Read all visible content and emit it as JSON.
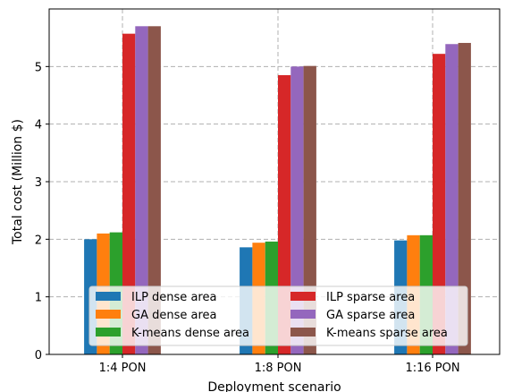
{
  "chart_data": {
    "type": "bar",
    "title": "",
    "xlabel": "Deployment scenario",
    "ylabel": "Total cost (Million $)",
    "categories": [
      "1:4 PON",
      "1:8 PON",
      "1:16 PON"
    ],
    "ylim": [
      0,
      6
    ],
    "yticks": [
      "0",
      "1",
      "2",
      "3",
      "4",
      "5"
    ],
    "grid": true,
    "legend_position": "lower center",
    "series": [
      {
        "name": "ILP dense area",
        "color": "#1f77b4",
        "values": [
          2.0,
          1.86,
          1.98
        ]
      },
      {
        "name": "GA dense area",
        "color": "#ff7f0e",
        "values": [
          2.1,
          1.94,
          2.07
        ]
      },
      {
        "name": "K-means dense area",
        "color": "#2ca02c",
        "values": [
          2.12,
          1.96,
          2.07
        ]
      },
      {
        "name": "ILP sparse area",
        "color": "#d62728",
        "values": [
          5.57,
          4.85,
          5.22
        ]
      },
      {
        "name": "GA sparse area",
        "color": "#9467bd",
        "values": [
          5.7,
          5.0,
          5.39
        ]
      },
      {
        "name": "K-means sparse area",
        "color": "#8c564b",
        "values": [
          5.7,
          5.01,
          5.41
        ]
      }
    ]
  }
}
